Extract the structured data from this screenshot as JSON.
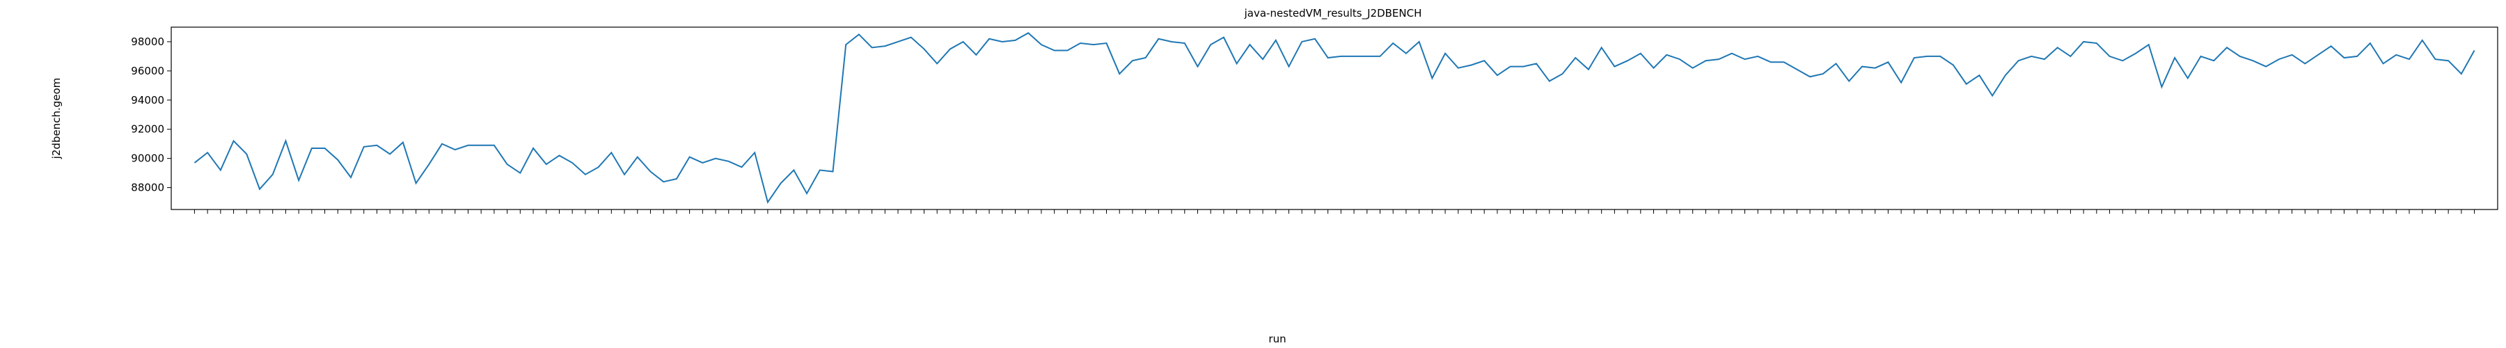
{
  "chart_data": {
    "type": "line",
    "title": "java-nestedVM_results_J2DBENCH",
    "x_label": "run",
    "y_label": "j2dbench.geom",
    "categories": [
      null,
      null,
      null,
      null,
      null,
      null,
      null,
      null,
      null,
      null,
      null,
      null,
      null,
      null,
      null,
      null,
      null,
      null,
      null,
      null,
      null,
      null,
      null,
      null,
      null,
      null,
      null,
      null,
      null,
      null,
      null,
      null,
      null,
      null,
      null,
      null,
      null,
      null,
      null,
      null,
      null,
      null,
      null,
      null,
      null,
      null,
      null,
      null,
      null,
      null,
      null,
      null,
      null,
      null,
      null,
      null,
      null,
      null,
      null,
      null,
      null,
      null,
      null,
      null,
      null,
      null,
      null,
      null,
      null,
      null,
      null,
      null,
      null,
      null,
      null,
      null,
      null,
      null,
      null,
      null,
      null,
      null,
      null,
      null,
      null,
      null,
      null,
      null,
      null,
      null,
      null,
      null,
      null,
      null,
      null,
      null,
      null,
      null,
      null,
      null,
      null,
      null,
      null,
      null,
      null,
      null,
      null,
      null,
      null,
      null,
      null,
      null,
      null,
      null,
      null,
      null,
      null,
      null,
      null,
      null,
      null,
      null,
      null,
      null,
      null,
      null,
      null,
      null,
      null,
      null,
      null,
      null,
      null,
      null,
      null,
      null,
      null,
      null,
      null,
      null,
      null,
      null,
      null,
      null,
      null,
      null,
      null,
      null,
      null,
      null,
      null,
      null,
      null,
      null,
      null,
      null,
      null,
      null,
      null,
      null,
      null,
      null,
      null,
      null,
      null,
      null,
      null,
      null,
      null,
      null,
      null,
      null,
      null,
      null,
      null,
      null
    ],
    "series": [
      {
        "name": "j2dbench.geom",
        "color": "#1f77b4",
        "values": [
          89700,
          90400,
          89200,
          91200,
          90300,
          87900,
          88900,
          91200,
          88500,
          90700,
          90700,
          89900,
          88700,
          90800,
          90900,
          90300,
          91100,
          88300,
          89600,
          91000,
          90600,
          90900,
          90900,
          90900,
          89600,
          89000,
          90700,
          89600,
          90200,
          89700,
          88900,
          89400,
          90400,
          88900,
          90100,
          89100,
          88400,
          88600,
          90100,
          89700,
          90000,
          89800,
          89400,
          90400,
          87000,
          88300,
          89200,
          87600,
          89200,
          89100,
          97800,
          98500,
          97600,
          97700,
          98000,
          98300,
          97500,
          96500,
          97500,
          98000,
          97100,
          98200,
          98000,
          98100,
          98600,
          97800,
          97400,
          97400,
          97900,
          97800,
          97900,
          95800,
          96700,
          96900,
          98200,
          98000,
          97900,
          96300,
          97800,
          98300,
          96500,
          97800,
          96800,
          98100,
          96300,
          98000,
          98200,
          96900,
          97000,
          97000,
          97000,
          97000,
          97900,
          97200,
          98000,
          95500,
          97200,
          96200,
          96400,
          96700,
          95700,
          96300,
          96300,
          96500,
          95300,
          95800,
          96900,
          96100,
          97600,
          96300,
          96700,
          97200,
          96200,
          97100,
          96800,
          96200,
          96700,
          96800,
          97200,
          96800,
          97000,
          96600,
          96600,
          96100,
          95600,
          95800,
          96500,
          95300,
          96300,
          96200,
          96600,
          95200,
          96900,
          97000,
          97000,
          96400,
          95100,
          95700,
          94300,
          95700,
          96700,
          97000,
          96800,
          97600,
          97000,
          98000,
          97900,
          97000,
          96700,
          97200,
          97800,
          94900,
          96900,
          95500,
          97000,
          96700,
          97600,
          97000,
          96700,
          96300,
          96800,
          97100,
          96500,
          97100,
          97700,
          96900,
          97000,
          97900,
          96500,
          97100,
          96800,
          98100,
          96800,
          96700,
          95800,
          97400
        ]
      }
    ],
    "ylim": [
      86500,
      99000
    ],
    "yticks": [
      88000,
      90000,
      92000,
      94000,
      96000,
      98000
    ],
    "grid": false
  }
}
